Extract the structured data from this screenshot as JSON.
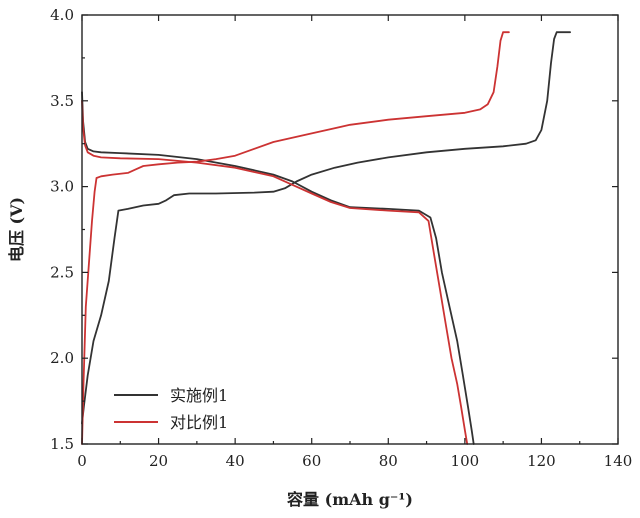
{
  "chart_data": {
    "type": "line",
    "title": "",
    "xlabel": "容量 (mAh g⁻¹)",
    "ylabel": "电压 (V)",
    "xlim": [
      0,
      140
    ],
    "ylim": [
      1.5,
      4.0
    ],
    "xticks": [
      0,
      20,
      40,
      60,
      80,
      100,
      120,
      140
    ],
    "xtick_labels": [
      "0",
      "20",
      "40",
      "60",
      "80",
      "100",
      "120",
      "140"
    ],
    "yticks": [
      1.5,
      2.0,
      2.5,
      3.0,
      3.5,
      4.0
    ],
    "ytick_labels": [
      "1.5",
      "2.0",
      "2.5",
      "3.0",
      "3.5",
      "4.0"
    ],
    "grid": false,
    "legend_position": "bottom-left",
    "series": [
      {
        "name": "实施例1",
        "color": "#333333",
        "segments": [
          {
            "label": "charge",
            "x": [
              0,
              0.5,
              1.5,
              3,
              5,
              7,
              8.5,
              9.5,
              12,
              16,
              20,
              22,
              24,
              28,
              35,
              45,
              50,
              53,
              56,
              60,
              66,
              72,
              80,
              90,
              100,
              110,
              116,
              118.5,
              120,
              121.5,
              122.5,
              123.3,
              124,
              127.5
            ],
            "y": [
              1.62,
              1.72,
              1.9,
              2.1,
              2.25,
              2.45,
              2.7,
              2.86,
              2.87,
              2.89,
              2.9,
              2.92,
              2.95,
              2.96,
              2.96,
              2.965,
              2.97,
              2.99,
              3.03,
              3.07,
              3.11,
              3.14,
              3.17,
              3.2,
              3.22,
              3.235,
              3.25,
              3.27,
              3.33,
              3.5,
              3.72,
              3.86,
              3.9,
              3.9
            ]
          },
          {
            "label": "discharge",
            "x": [
              0,
              0.3,
              0.8,
              1.5,
              3,
              5,
              10,
              20,
              30,
              40,
              50,
              55,
              60,
              65,
              70,
              80,
              88,
              91,
              92.5,
              94,
              96,
              98,
              99.5,
              100.8,
              101.8,
              102.3
            ],
            "y": [
              3.55,
              3.38,
              3.26,
              3.22,
              3.205,
              3.2,
              3.195,
              3.185,
              3.16,
              3.12,
              3.07,
              3.03,
              2.97,
              2.92,
              2.88,
              2.87,
              2.86,
              2.82,
              2.7,
              2.5,
              2.3,
              2.1,
              1.9,
              1.72,
              1.58,
              1.5
            ]
          }
        ]
      },
      {
        "name": "对比例1",
        "color": "#cc3333",
        "segments": [
          {
            "label": "charge",
            "x": [
              0,
              0.4,
              1,
              1.8,
              2.6,
              3.3,
              3.8,
              5,
              8,
              12,
              14,
              16,
              20,
              25,
              30,
              35,
              40,
              50,
              60,
              70,
              80,
              90,
              100,
              104,
              106,
              107.5,
              108.5,
              109.3,
              110,
              111.5
            ],
            "y": [
              1.5,
              1.85,
              2.3,
              2.55,
              2.8,
              2.97,
              3.05,
              3.06,
              3.07,
              3.08,
              3.1,
              3.12,
              3.13,
              3.14,
              3.145,
              3.16,
              3.18,
              3.26,
              3.31,
              3.36,
              3.39,
              3.41,
              3.43,
              3.45,
              3.48,
              3.55,
              3.7,
              3.85,
              3.9,
              3.9
            ]
          },
          {
            "label": "discharge",
            "x": [
              0,
              0.3,
              0.8,
              1.5,
              3,
              5,
              10,
              20,
              30,
              40,
              50,
              55,
              60,
              65,
              70,
              80,
              88,
              90.5,
              92,
              93.5,
              95,
              96.5,
              98,
              99,
              100,
              100.6
            ],
            "y": [
              3.5,
              3.34,
              3.24,
              3.2,
              3.18,
              3.17,
              3.165,
              3.16,
              3.14,
              3.11,
              3.06,
              3.01,
              2.96,
              2.91,
              2.875,
              2.86,
              2.85,
              2.8,
              2.6,
              2.4,
              2.2,
              2.0,
              1.85,
              1.72,
              1.58,
              1.5
            ]
          }
        ]
      }
    ]
  }
}
